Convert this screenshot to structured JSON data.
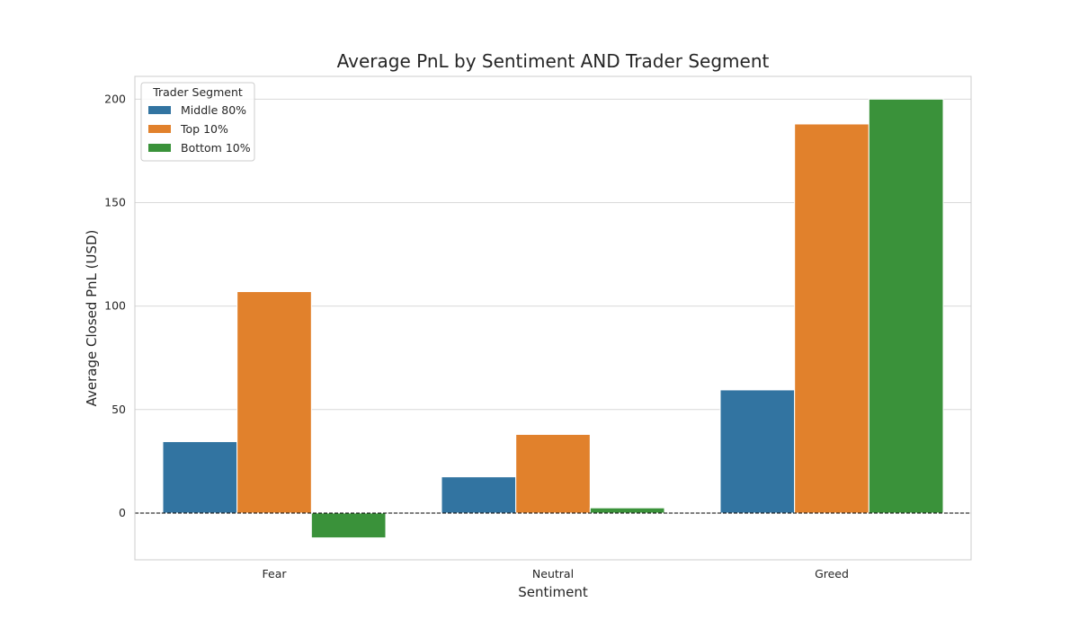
{
  "chart_data": {
    "type": "bar",
    "title": "Average PnL by Sentiment AND Trader Segment",
    "xlabel": "Sentiment",
    "ylabel": "Average Closed PnL (USD)",
    "categories": [
      "Fear",
      "Neutral",
      "Greed"
    ],
    "series": [
      {
        "name": "Middle 80%",
        "values": [
          34.5,
          17.5,
          59.5
        ],
        "color": "#3274a1"
      },
      {
        "name": "Top 10%",
        "values": [
          107,
          38,
          188
        ],
        "color": "#e1812c"
      },
      {
        "name": "Bottom 10%",
        "values": [
          -12,
          2.5,
          200
        ],
        "color": "#3a923a"
      }
    ],
    "ylim": [
      -22.6,
      211
    ],
    "yticks": [
      0,
      50,
      100,
      150,
      200
    ],
    "grid": true,
    "legend": {
      "title": "Trader Segment",
      "position": "top-left"
    },
    "reference_line": {
      "y": 0,
      "style": "dashed",
      "color": "#000000"
    }
  }
}
